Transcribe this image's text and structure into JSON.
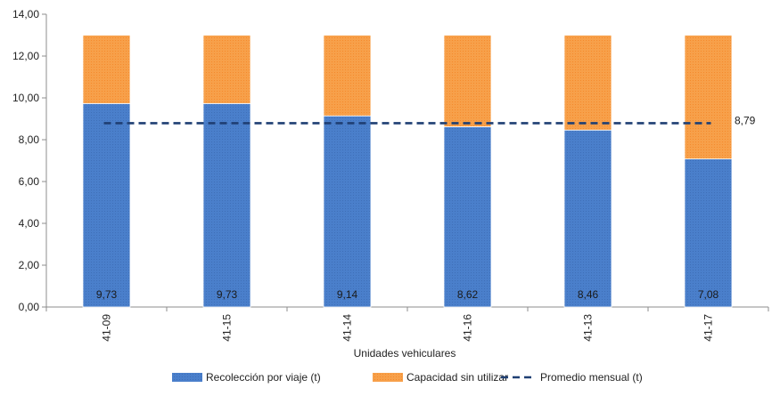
{
  "chart_data": {
    "type": "bar",
    "stacked": true,
    "categories": [
      "41-09",
      "41-15",
      "41-14",
      "41-16",
      "41-13",
      "41-17"
    ],
    "series": [
      {
        "name": "Recolección por viaje (t)",
        "values": [
          9.73,
          9.73,
          9.14,
          8.62,
          8.46,
          7.08
        ],
        "labels": [
          "9,73",
          "9,73",
          "9,14",
          "8,62",
          "8,46",
          "7,08"
        ],
        "color": "#4a7fcb",
        "pattern_color": "#3f6fb8"
      },
      {
        "name": "Capacidad sin utilizar",
        "values": [
          3.27,
          3.27,
          3.86,
          4.38,
          4.54,
          5.92
        ],
        "color": "#f7a04a",
        "pattern_color": "#f58a2c"
      }
    ],
    "average": {
      "name": "Promedio mensual (t)",
      "value": 8.79,
      "label": "8,79",
      "color": "#1f3f73"
    },
    "xlabel": "Unidades vehiculares",
    "ylabel": "",
    "ylim": [
      0,
      14
    ],
    "yticks": [
      "0,00",
      "2,00",
      "4,00",
      "6,00",
      "8,00",
      "10,00",
      "12,00",
      "14,00"
    ],
    "grid": false,
    "legend_position": "bottom"
  }
}
